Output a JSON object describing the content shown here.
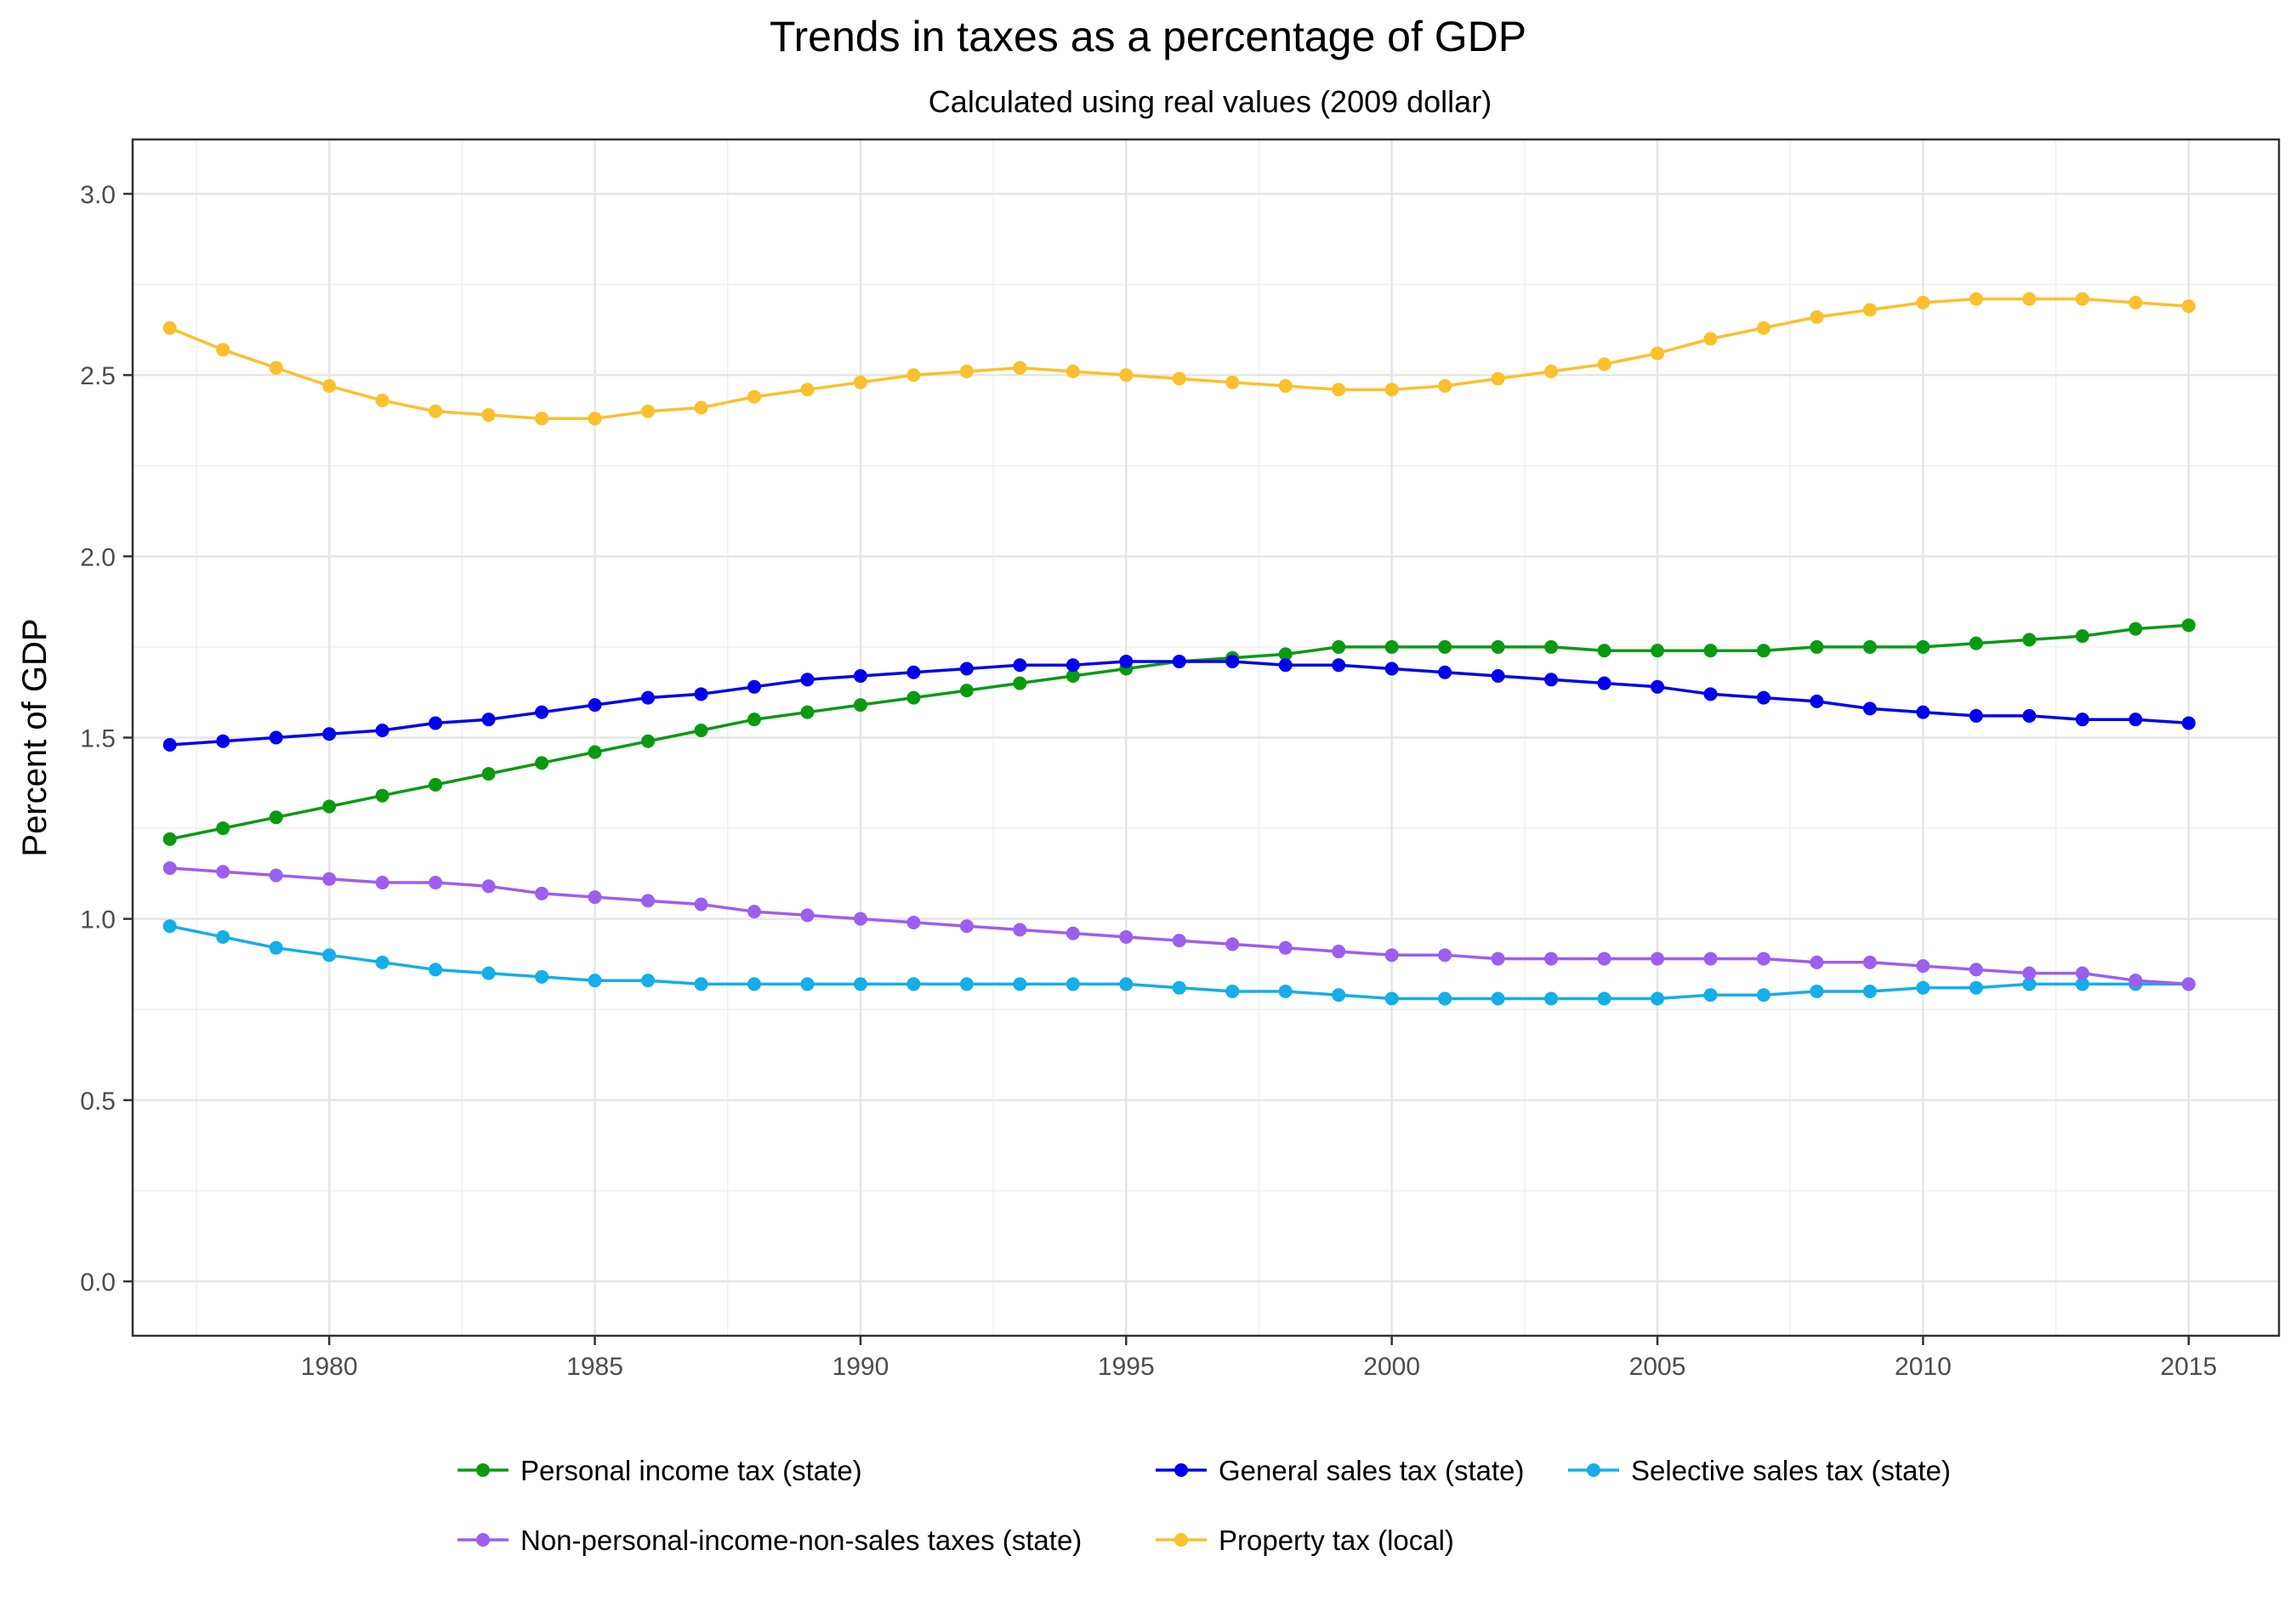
{
  "chart_data": {
    "type": "line",
    "title": "Trends in taxes as a percentage of GDP",
    "subtitle": "Calculated using real values (2009 dollar)",
    "xlabel": "",
    "ylabel": "Percent of GDP",
    "xlim": [
      1976.3,
      2016.7
    ],
    "ylim": [
      -0.15,
      3.15
    ],
    "x_ticks": [
      1980,
      1985,
      1990,
      1995,
      2000,
      2005,
      2010,
      2015
    ],
    "x_tick_labels": [
      "1980",
      "1985",
      "1990",
      "1995",
      "2000",
      "2005",
      "2010",
      "2015"
    ],
    "y_ticks": [
      0.0,
      0.5,
      1.0,
      1.5,
      2.0,
      2.5,
      3.0
    ],
    "y_tick_labels": [
      "0.0",
      "0.5",
      "1.0",
      "1.5",
      "2.0",
      "2.5",
      "3.0"
    ],
    "grid": true,
    "legend_position": "bottom",
    "x": [
      1977,
      1978,
      1979,
      1980,
      1981,
      1982,
      1983,
      1984,
      1985,
      1986,
      1987,
      1988,
      1989,
      1990,
      1991,
      1992,
      1993,
      1994,
      1995,
      1996,
      1997,
      1998,
      1999,
      2000,
      2001,
      2002,
      2003,
      2004,
      2005,
      2006,
      2007,
      2008,
      2009,
      2010,
      2011,
      2012,
      2013,
      2014,
      2015
    ],
    "series": [
      {
        "name": "Personal income tax (state)",
        "color": "#0a9a12",
        "values": [
          1.22,
          1.25,
          1.28,
          1.31,
          1.34,
          1.37,
          1.4,
          1.43,
          1.46,
          1.49,
          1.52,
          1.55,
          1.57,
          1.59,
          1.61,
          1.63,
          1.65,
          1.67,
          1.69,
          1.71,
          1.72,
          1.73,
          1.75,
          1.75,
          1.75,
          1.75,
          1.75,
          1.74,
          1.74,
          1.74,
          1.74,
          1.75,
          1.75,
          1.75,
          1.76,
          1.77,
          1.78,
          1.8,
          1.81
        ]
      },
      {
        "name": "General sales tax (state)",
        "color": "#0000ee",
        "values": [
          1.48,
          1.49,
          1.5,
          1.51,
          1.52,
          1.54,
          1.55,
          1.57,
          1.59,
          1.61,
          1.62,
          1.64,
          1.66,
          1.67,
          1.68,
          1.69,
          1.7,
          1.7,
          1.71,
          1.71,
          1.71,
          1.7,
          1.7,
          1.69,
          1.68,
          1.67,
          1.66,
          1.65,
          1.64,
          1.62,
          1.61,
          1.6,
          1.58,
          1.57,
          1.56,
          1.56,
          1.55,
          1.55,
          1.54
        ]
      },
      {
        "name": "Selective sales tax (state)",
        "color": "#14aee8",
        "values": [
          0.98,
          0.95,
          0.92,
          0.9,
          0.88,
          0.86,
          0.85,
          0.84,
          0.83,
          0.83,
          0.82,
          0.82,
          0.82,
          0.82,
          0.82,
          0.82,
          0.82,
          0.82,
          0.82,
          0.81,
          0.8,
          0.8,
          0.79,
          0.78,
          0.78,
          0.78,
          0.78,
          0.78,
          0.78,
          0.79,
          0.79,
          0.8,
          0.8,
          0.81,
          0.81,
          0.82,
          0.82,
          0.82,
          0.82
        ]
      },
      {
        "name": "Non-personal-income-non-sales taxes (state)",
        "color": "#9b5ff0",
        "values": [
          1.14,
          1.13,
          1.12,
          1.11,
          1.1,
          1.1,
          1.09,
          1.07,
          1.06,
          1.05,
          1.04,
          1.02,
          1.01,
          1.0,
          0.99,
          0.98,
          0.97,
          0.96,
          0.95,
          0.94,
          0.93,
          0.92,
          0.91,
          0.9,
          0.9,
          0.89,
          0.89,
          0.89,
          0.89,
          0.89,
          0.89,
          0.88,
          0.88,
          0.87,
          0.86,
          0.85,
          0.85,
          0.83,
          0.82
        ]
      },
      {
        "name": "Property tax (local)",
        "color": "#fbc02d",
        "values": [
          2.63,
          2.57,
          2.52,
          2.47,
          2.43,
          2.4,
          2.39,
          2.38,
          2.38,
          2.4,
          2.41,
          2.44,
          2.46,
          2.48,
          2.5,
          2.51,
          2.52,
          2.51,
          2.5,
          2.49,
          2.48,
          2.47,
          2.46,
          2.46,
          2.47,
          2.49,
          2.51,
          2.53,
          2.56,
          2.6,
          2.63,
          2.66,
          2.68,
          2.7,
          2.71,
          2.71,
          2.71,
          2.7,
          2.69
        ]
      }
    ]
  }
}
